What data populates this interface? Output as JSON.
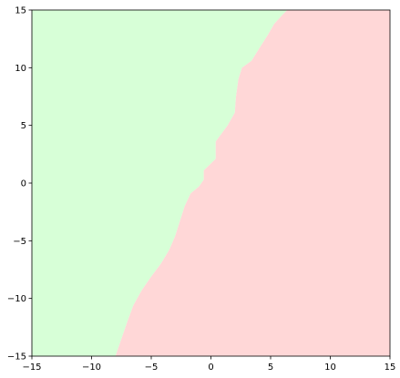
{
  "chart_data": {
    "type": "area",
    "title": "",
    "xlabel": "",
    "ylabel": "",
    "xlim": [
      -15,
      15
    ],
    "ylim": [
      -15,
      15
    ],
    "grid": false,
    "x_ticks": [
      -15,
      -10,
      -5,
      0,
      5,
      10,
      15
    ],
    "y_ticks": [
      -15,
      -10,
      -5,
      0,
      5,
      10,
      15
    ],
    "x_tick_labels": [
      "−15",
      "−10",
      "−5",
      "0",
      "5",
      "10",
      "15"
    ],
    "y_tick_labels": [
      "−15",
      "−10",
      "−5",
      "0",
      "5",
      "10",
      "15"
    ],
    "regions": [
      {
        "side": "left",
        "color": "#d7ffd7"
      },
      {
        "side": "right",
        "color": "#ffd7d7"
      }
    ],
    "boundary": [
      {
        "x": -8.0,
        "y": -15.0
      },
      {
        "x": -7.5,
        "y": -13.5
      },
      {
        "x": -7.0,
        "y": -12.0
      },
      {
        "x": -6.5,
        "y": -10.6
      },
      {
        "x": -5.8,
        "y": -9.3
      },
      {
        "x": -5.0,
        "y": -8.1
      },
      {
        "x": -4.2,
        "y": -7.0
      },
      {
        "x": -3.5,
        "y": -5.8
      },
      {
        "x": -3.0,
        "y": -4.6
      },
      {
        "x": -2.6,
        "y": -3.3
      },
      {
        "x": -2.2,
        "y": -2.0
      },
      {
        "x": -1.7,
        "y": -0.9
      },
      {
        "x": -1.0,
        "y": -0.3
      },
      {
        "x": -0.6,
        "y": 0.3
      },
      {
        "x": -0.6,
        "y": 1.1
      },
      {
        "x": -0.1,
        "y": 1.6
      },
      {
        "x": 0.4,
        "y": 2.1
      },
      {
        "x": 0.4,
        "y": 3.6
      },
      {
        "x": 0.9,
        "y": 4.3
      },
      {
        "x": 1.4,
        "y": 5.0
      },
      {
        "x": 2.0,
        "y": 6.1
      },
      {
        "x": 2.1,
        "y": 7.5
      },
      {
        "x": 2.3,
        "y": 9.0
      },
      {
        "x": 2.6,
        "y": 10.0
      },
      {
        "x": 3.4,
        "y": 10.6
      },
      {
        "x": 4.0,
        "y": 11.6
      },
      {
        "x": 4.8,
        "y": 12.9
      },
      {
        "x": 5.3,
        "y": 13.8
      },
      {
        "x": 6.0,
        "y": 14.6
      },
      {
        "x": 6.4,
        "y": 15.0
      }
    ]
  }
}
